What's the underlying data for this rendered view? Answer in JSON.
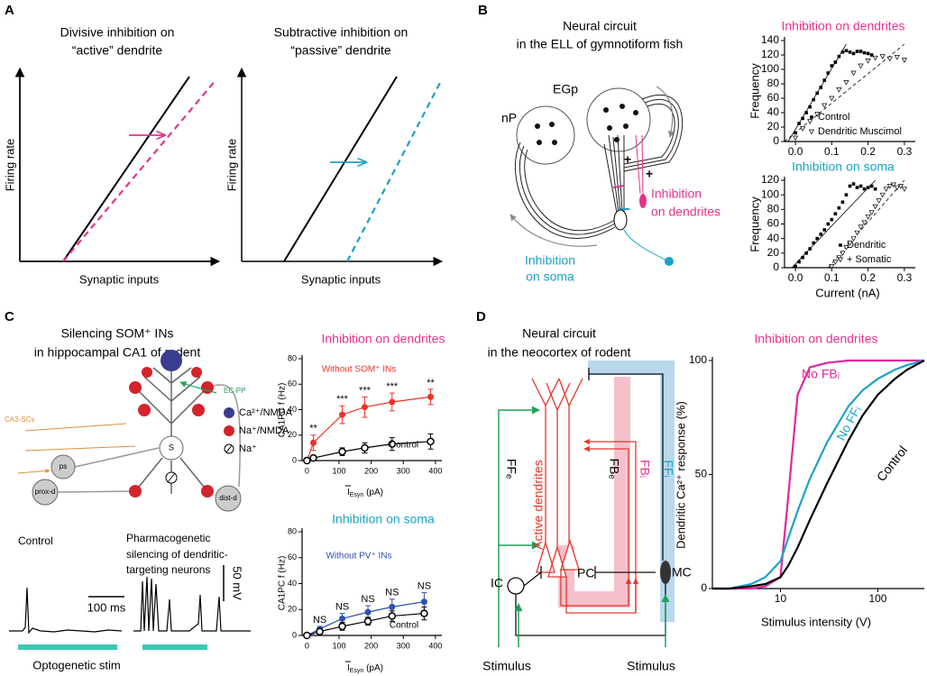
{
  "panels": {
    "A": {
      "letter": "A",
      "left": {
        "title": [
          "Divisive inhibition on",
          "“active” dendrite"
        ],
        "y_label": "Firing rate",
        "x_label": "Synaptic inputs"
      },
      "right": {
        "title": [
          "Subtractive inhibition on",
          "“passive” dendrite"
        ],
        "y_label": "Firing rate",
        "x_label": "Synaptic inputs"
      }
    },
    "B": {
      "letter": "B",
      "title": [
        "Neural circuit",
        "in the ELL of gymnotiform fish"
      ],
      "egp": "EGp",
      "np": "nP",
      "plus": [
        "+",
        "+"
      ],
      "dendrites": [
        "Inhibition",
        "on dendrites"
      ],
      "soma": [
        "Inhibition",
        "on soma"
      ]
    },
    "C": {
      "letter": "C",
      "title": [
        "Silencing SOM⁺ INs",
        "in hippocampal CA1 of rodent"
      ],
      "ec_pp": "EC-PP",
      "ca3_scs": "CA3-SCs",
      "legend": [
        "Ca²⁺/NMDA",
        "Na⁺/NMDA",
        "Na⁺"
      ],
      "compartments": [
        "ps",
        "prox-d",
        "dist-d",
        "S"
      ],
      "control": "Control",
      "pharmaco": [
        "Pharmacogenetic",
        "silencing of dendritic-",
        "targeting neurons"
      ],
      "time_scale": "100 ms",
      "voltage_scale": "50 mV",
      "stim": "Optogenetic stim"
    },
    "D": {
      "letter": "D",
      "title": [
        "Neural circuit",
        "in the neocortex of rodent"
      ],
      "active": "Active dendrites",
      "fbe": "FBₑ",
      "fbi": "FBᵢ",
      "ffi": "FFᵢ",
      "ffe": "FFₑ",
      "pc": "PC",
      "ic": "IC",
      "mc": "MC",
      "stimulus": [
        "Stimulus",
        "Stimulus"
      ]
    }
  },
  "chart_data": [
    {
      "type": "scatter",
      "title": "Inhibition on dendrites",
      "title_color": "#e4338d",
      "y_label": "Frequency",
      "xlim": [
        -0.03,
        0.33
      ],
      "ylim": [
        0,
        140
      ],
      "xticks": [
        {
          "value": 0,
          "label": "0.0"
        },
        0.1,
        0.2,
        0.3
      ],
      "yticks": [
        0,
        20,
        40,
        60,
        80,
        100,
        120,
        140
      ],
      "series": [
        {
          "name": "Control",
          "color": "#000000",
          "marker": "square",
          "x": [
            0,
            0.01,
            0.02,
            0.03,
            0.04,
            0.05,
            0.06,
            0.07,
            0.08,
            0.09,
            0.1,
            0.11,
            0.12,
            0.13,
            0.14,
            0.15,
            0.16,
            0.17,
            0.18,
            0.19,
            0.2,
            0.21
          ],
          "values": [
            12,
            25,
            32,
            40,
            48,
            58,
            67,
            75,
            85,
            95,
            105,
            110,
            118,
            124,
            126,
            124,
            122,
            125,
            125,
            123,
            122,
            120
          ]
        },
        {
          "name": "Dendritic Muscimol",
          "color": "#000000",
          "marker": "triangle",
          "x": [
            0,
            0.02,
            0.04,
            0.06,
            0.08,
            0.1,
            0.12,
            0.14,
            0.16,
            0.18,
            0.2,
            0.22,
            0.24,
            0.26,
            0.28,
            0.3
          ],
          "values": [
            5,
            18,
            28,
            38,
            50,
            60,
            72,
            82,
            95,
            105,
            112,
            116,
            118,
            115,
            117,
            113
          ]
        }
      ],
      "fits": [
        {
          "x": [
            -0.02,
            0.14
          ],
          "values": [
            0,
            135
          ],
          "dash": false
        },
        {
          "x": [
            -0.03,
            0.3
          ],
          "values": [
            0,
            135
          ],
          "dash": true
        }
      ]
    },
    {
      "type": "scatter",
      "title": "Inhibition on soma",
      "title_color": "#1aa3c8",
      "y_label": "Frequency",
      "x_label": "Current (nA)",
      "xlim": [
        -0.03,
        0.33
      ],
      "ylim": [
        0,
        120
      ],
      "xticks": [
        {
          "value": 0,
          "label": "0.0"
        },
        0.1,
        0.2,
        0.3
      ],
      "yticks": [
        0,
        20,
        40,
        60,
        80,
        100,
        120
      ],
      "series": [
        {
          "name": "Dendritic",
          "color": "#000000",
          "marker": "square",
          "x": [
            0,
            0.01,
            0.02,
            0.03,
            0.04,
            0.05,
            0.06,
            0.07,
            0.08,
            0.09,
            0.1,
            0.11,
            0.12,
            0.13,
            0.14,
            0.15,
            0.16,
            0.17,
            0.18,
            0.19,
            0.2,
            0.21,
            0.22
          ],
          "values": [
            2,
            8,
            14,
            20,
            26,
            34,
            40,
            46,
            52,
            60,
            66,
            74,
            82,
            90,
            100,
            112,
            115,
            110,
            112,
            108,
            110,
            112,
            108
          ]
        },
        {
          "name": "+ Somatic",
          "color": "#000000",
          "marker": "triangle",
          "x": [
            0.1,
            0.11,
            0.12,
            0.13,
            0.14,
            0.15,
            0.16,
            0.17,
            0.18,
            0.19,
            0.2,
            0.21,
            0.22,
            0.23,
            0.24,
            0.25,
            0.26,
            0.27,
            0.28,
            0.29,
            0.3
          ],
          "values": [
            2,
            8,
            14,
            20,
            28,
            34,
            40,
            48,
            56,
            62,
            70,
            76,
            84,
            92,
            100,
            108,
            112,
            114,
            110,
            112,
            108
          ]
        }
      ],
      "fits": [
        {
          "x": [
            -0.01,
            0.22
          ],
          "values": [
            0,
            120
          ],
          "dash": false
        },
        {
          "x": [
            0.09,
            0.3
          ],
          "values": [
            0,
            120
          ],
          "dash": true
        }
      ]
    },
    {
      "type": "line",
      "title": "Inhibition on dendrites",
      "title_color": "#e4338d",
      "y_label": "CA1PC f (Hz)",
      "x_label": [
        "I",
        "Esyn",
        " (pA)"
      ],
      "xlim": [
        -15,
        420
      ],
      "ylim": [
        0,
        80
      ],
      "xticks": [
        0,
        100,
        200,
        300,
        400
      ],
      "yticks": [
        0,
        20,
        40,
        60,
        80
      ],
      "series": [
        {
          "name": "Without SOM⁺ INs",
          "color": "#e8352a",
          "marker": "filled",
          "x": [
            0,
            20,
            110,
            180,
            265,
            385
          ],
          "values": [
            0,
            14,
            36,
            42,
            46,
            50
          ],
          "errors": [
            1,
            6,
            7,
            8,
            7,
            6
          ],
          "significance": [
            null,
            "**",
            "***",
            "***",
            "***",
            "**"
          ]
        },
        {
          "name": "Control",
          "color": "#000000",
          "marker": "open",
          "x": [
            0,
            20,
            110,
            180,
            265,
            385
          ],
          "values": [
            0,
            2,
            7,
            10,
            13,
            15
          ],
          "errors": [
            1,
            2,
            3,
            4,
            5,
            6
          ]
        }
      ]
    },
    {
      "type": "line",
      "title": "Inhibition on soma",
      "title_color": "#1aa3c8",
      "y_label": "CA1PC f (Hz)",
      "x_label": [
        "I",
        "Esyn",
        " (pA)"
      ],
      "xlim": [
        -15,
        420
      ],
      "ylim": [
        0,
        80
      ],
      "xticks": [
        0,
        100,
        200,
        300,
        400
      ],
      "yticks": [
        0,
        20,
        40,
        60,
        80
      ],
      "series": [
        {
          "name": "Without PV⁺ INs",
          "color": "#2f4fb0",
          "marker": "filled",
          "x": [
            0,
            40,
            110,
            190,
            265,
            365
          ],
          "values": [
            0,
            5,
            13,
            18,
            22,
            26
          ],
          "errors": [
            1,
            2,
            4,
            5,
            6,
            7
          ],
          "significance": [
            null,
            "NS",
            "NS",
            "NS",
            "NS",
            "NS"
          ]
        },
        {
          "name": "Control",
          "color": "#000000",
          "marker": "open",
          "x": [
            0,
            40,
            110,
            190,
            265,
            365
          ],
          "values": [
            0,
            3,
            7,
            11,
            15,
            17
          ],
          "errors": [
            1,
            2,
            3,
            3,
            4,
            5
          ]
        }
      ]
    },
    {
      "type": "line",
      "title": "Inhibition on dendrites",
      "title_color": "#e4338d",
      "y_label": "Dendritic Ca²⁺ response (%)",
      "x_label": "Stimulus intensity (V)",
      "log_x": true,
      "xlim": [
        2,
        300
      ],
      "ylim": [
        0,
        100
      ],
      "xticks": [
        10,
        100
      ],
      "yticks": [
        0,
        50,
        100
      ],
      "series": [
        {
          "name": "No FBᵢ",
          "color": "#e0279b",
          "marker": "none",
          "x": [
            2,
            3,
            5,
            7,
            10,
            12,
            15,
            20,
            30,
            50,
            70,
            100,
            150,
            200,
            300
          ],
          "values": [
            0,
            0,
            0,
            1,
            5,
            40,
            85,
            97,
            99,
            100,
            100,
            100,
            100,
            100,
            100
          ]
        },
        {
          "name": "No FFᵢ",
          "color": "#1aa3c8",
          "marker": "none",
          "x": [
            2,
            3,
            5,
            7,
            10,
            12,
            15,
            20,
            30,
            50,
            70,
            100,
            150,
            200,
            300
          ],
          "values": [
            0,
            0,
            2,
            5,
            12,
            22,
            34,
            48,
            64,
            80,
            87,
            92,
            96,
            98,
            100
          ]
        },
        {
          "name": "Control",
          "color": "#000000",
          "marker": "none",
          "x": [
            2,
            3,
            5,
            7,
            10,
            12,
            15,
            20,
            30,
            50,
            70,
            100,
            150,
            200,
            300
          ],
          "values": [
            0,
            0,
            1,
            2,
            5,
            10,
            18,
            30,
            46,
            65,
            76,
            85,
            92,
            96,
            100
          ]
        }
      ]
    }
  ]
}
